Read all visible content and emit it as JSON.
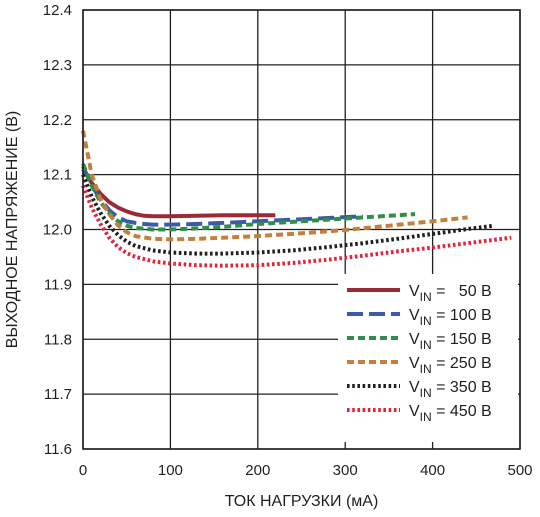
{
  "chart_data": {
    "type": "line",
    "xlabel": "ТОК НАГРУЗКИ (мА)",
    "ylabel": "ВЫХОДНОЕ НАПРЯЖЕНИЕ (В)",
    "xlim": [
      0,
      500
    ],
    "ylim": [
      11.6,
      12.4
    ],
    "xticks": [
      "0",
      "100",
      "200",
      "300",
      "400",
      "500"
    ],
    "yticks": [
      "11.6",
      "11.7",
      "11.8",
      "11.9",
      "12.0",
      "12.1",
      "12.2",
      "12.3",
      "12.4"
    ],
    "grid": true,
    "legend_position": "bottom-right",
    "series": [
      {
        "name": "VIN = 50 В",
        "legend": {
          "prefix": "V",
          "sub": "IN",
          "suffix": " =   50 В"
        },
        "color": "#9c2a36",
        "style": "solid",
        "x": [
          0,
          10,
          20,
          30,
          40,
          50,
          60,
          70,
          80,
          100,
          130,
          160,
          190,
          220
        ],
        "y": [
          12.11,
          12.085,
          12.065,
          12.05,
          12.04,
          12.033,
          12.028,
          12.025,
          12.024,
          12.024,
          12.025,
          12.026,
          12.026,
          12.026
        ]
      },
      {
        "name": "VIN = 100 В",
        "legend": {
          "prefix": "V",
          "sub": "IN",
          "suffix": " = 100 В"
        },
        "color": "#3b5ba8",
        "style": "longdash",
        "x": [
          0,
          10,
          20,
          30,
          40,
          50,
          60,
          70,
          80,
          100,
          130,
          160,
          200,
          240,
          280,
          320
        ],
        "y": [
          12.115,
          12.08,
          12.055,
          12.035,
          12.022,
          12.015,
          12.012,
          12.01,
          12.009,
          12.009,
          12.01,
          12.012,
          12.015,
          12.018,
          12.021,
          12.024
        ]
      },
      {
        "name": "VIN = 150 В",
        "legend": {
          "prefix": "V",
          "sub": "IN",
          "suffix": " = 150 В"
        },
        "color": "#2f8f48",
        "style": "dash",
        "x": [
          0,
          10,
          20,
          30,
          40,
          50,
          60,
          80,
          100,
          130,
          160,
          200,
          250,
          300,
          350,
          380
        ],
        "y": [
          12.12,
          12.08,
          12.05,
          12.03,
          12.015,
          12.007,
          12.003,
          12.0,
          12.0,
          12.002,
          12.005,
          12.01,
          12.015,
          12.02,
          12.025,
          12.028
        ]
      },
      {
        "name": "VIN = 250 В",
        "legend": {
          "prefix": "V",
          "sub": "IN",
          "suffix": " = 250 В"
        },
        "color": "#c57f3c",
        "style": "dash",
        "x": [
          0,
          5,
          10,
          20,
          30,
          40,
          50,
          60,
          80,
          100,
          130,
          160,
          200,
          250,
          300,
          350,
          400,
          440
        ],
        "y": [
          12.18,
          12.14,
          12.1,
          12.055,
          12.028,
          12.008,
          11.995,
          11.988,
          11.983,
          11.982,
          11.983,
          11.985,
          11.988,
          11.993,
          11.999,
          12.007,
          12.015,
          12.022
        ]
      },
      {
        "name": "VIN = 350 В",
        "legend": {
          "prefix": "V",
          "sub": "IN",
          "suffix": " = 350 В"
        },
        "color": "#231f20",
        "style": "dot",
        "x": [
          0,
          10,
          20,
          30,
          40,
          50,
          60,
          80,
          100,
          130,
          160,
          200,
          240,
          280,
          320,
          360,
          400,
          440,
          470
        ],
        "y": [
          12.1,
          12.06,
          12.03,
          12.007,
          11.99,
          11.978,
          11.97,
          11.962,
          11.958,
          11.956,
          11.956,
          11.958,
          11.962,
          11.968,
          11.975,
          11.983,
          11.992,
          12.001,
          12.007
        ]
      },
      {
        "name": "VIN = 450 В",
        "legend": {
          "prefix": "V",
          "sub": "IN",
          "suffix": " = 450 В"
        },
        "color": "#e0243a",
        "style": "dot",
        "x": [
          0,
          10,
          20,
          30,
          40,
          50,
          60,
          80,
          100,
          130,
          160,
          200,
          240,
          280,
          320,
          360,
          400,
          440,
          480,
          490
        ],
        "y": [
          12.08,
          12.04,
          12.01,
          11.985,
          11.968,
          11.957,
          11.95,
          11.942,
          11.938,
          11.935,
          11.934,
          11.935,
          11.939,
          11.945,
          11.952,
          11.96,
          11.967,
          11.975,
          11.983,
          11.985
        ]
      }
    ]
  }
}
